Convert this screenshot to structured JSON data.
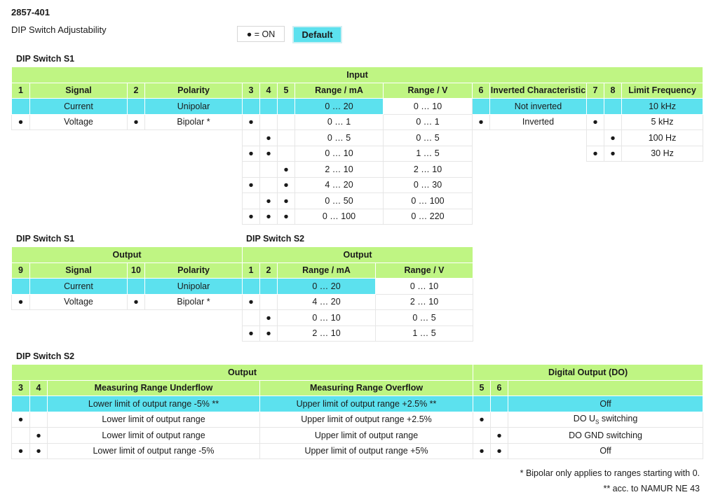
{
  "doc": {
    "id": "2857-401",
    "subtitle": "DIP Switch Adjustability"
  },
  "legend": {
    "on": "● = ON",
    "default": "Default"
  },
  "colors": {
    "header": "#bff583",
    "default_row": "#5ce1ee"
  },
  "s1_input": {
    "section": "DIP Switch S1",
    "group": "Input",
    "headers": [
      "1",
      "Signal",
      "2",
      "Polarity",
      "3",
      "4",
      "5",
      "Range / mA",
      "Range / V",
      "6",
      "Inverted Characteristic",
      "7",
      "8",
      "Limit Frequency"
    ],
    "rows": [
      [
        "",
        "Current",
        "",
        "Unipolar",
        "",
        "",
        "",
        "0 … 20",
        "0 … 10",
        "",
        "Not inverted",
        "",
        "",
        "10 kHz"
      ],
      [
        "●",
        "Voltage",
        "●",
        "Bipolar *",
        "●",
        "",
        "",
        "0 … 1",
        "0 … 1",
        "●",
        "Inverted",
        "●",
        "",
        "5 kHz"
      ],
      [
        "",
        "",
        "",
        "",
        "",
        "●",
        "",
        "0 … 5",
        "0 … 5",
        "",
        "",
        "",
        "●",
        "100 Hz"
      ],
      [
        "",
        "",
        "",
        "",
        "●",
        "●",
        "",
        "0 … 10",
        "1 … 5",
        "",
        "",
        "●",
        "●",
        "30 Hz"
      ],
      [
        "",
        "",
        "",
        "",
        "",
        "",
        "●",
        "2 … 10",
        "2 … 10",
        "",
        "",
        "",
        "",
        ""
      ],
      [
        "",
        "",
        "",
        "",
        "●",
        "",
        "●",
        "4 … 20",
        "0 … 30",
        "",
        "",
        "",
        "",
        ""
      ],
      [
        "",
        "",
        "",
        "",
        "",
        "●",
        "●",
        "0 … 50",
        "0 … 100",
        "",
        "",
        "",
        "",
        ""
      ],
      [
        "",
        "",
        "",
        "",
        "●",
        "●",
        "●",
        "0 … 100",
        "0 … 220",
        "",
        "",
        "",
        "",
        ""
      ]
    ]
  },
  "s1_output": {
    "section": "DIP Switch S1",
    "group": "Output",
    "headers": [
      "9",
      "Signal",
      "10",
      "Polarity"
    ],
    "rows": [
      [
        "",
        "Current",
        "",
        "Unipolar"
      ],
      [
        "●",
        "Voltage",
        "●",
        "Bipolar *"
      ]
    ]
  },
  "s2_output": {
    "section": "DIP Switch S2",
    "group": "Output",
    "headers": [
      "1",
      "2",
      "Range / mA",
      "Range / V"
    ],
    "rows": [
      [
        "",
        "",
        "0 … 20",
        "0 … 10"
      ],
      [
        "●",
        "",
        "4 … 20",
        "2 … 10"
      ],
      [
        "",
        "●",
        "0 … 10",
        "0 … 5"
      ],
      [
        "●",
        "●",
        "2 … 10",
        "1 … 5"
      ]
    ]
  },
  "s2_range": {
    "section": "DIP Switch S2",
    "group_output": "Output",
    "group_do": "Digital Output (DO)",
    "headers": [
      "3",
      "4",
      "Measuring Range Underflow",
      "Measuring Range Overflow",
      "5",
      "6",
      ""
    ],
    "rows": [
      [
        "",
        "",
        "Lower limit of output range -5% **",
        "Upper limit of output range +2.5% **",
        "",
        "",
        "Off"
      ],
      [
        "●",
        "",
        "Lower limit of output range",
        "Upper limit of output range +2.5%",
        "●",
        "",
        ""
      ],
      [
        "",
        "●",
        "Lower limit of output range",
        "Upper limit of output range",
        "",
        "●",
        "DO GND switching"
      ],
      [
        "●",
        "●",
        "Lower limit of output range -5%",
        "Upper limit of output range +5%",
        "●",
        "●",
        "Off"
      ]
    ],
    "do_us_prefix": "DO U",
    "do_us_sub": "S",
    "do_us_suffix": " switching"
  },
  "footnotes": {
    "bipolar": "* Bipolar only applies to ranges starting with 0.",
    "namur": "** acc. to NAMUR NE 43"
  }
}
